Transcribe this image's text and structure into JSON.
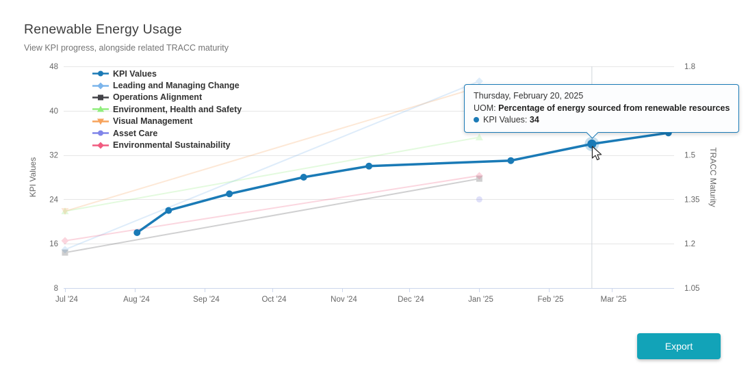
{
  "page": {
    "title": "Renewable Energy Usage",
    "subtitle": "View KPI progress, alongside related TRACC maturity"
  },
  "export_button": {
    "label": "Export",
    "color": "#12a3b8"
  },
  "tooltip": {
    "header": "Thursday, February 20, 2025",
    "uom_label": "UOM:",
    "uom_value": "Percentage of energy sourced from renewable resources",
    "series_label": "KPI Values:",
    "series_value": "34",
    "border_color": "#1a7ab6"
  },
  "chart_data": {
    "type": "line",
    "title": "Renewable Energy Usage",
    "subtitle": "View KPI progress, alongside related TRACC maturity",
    "grid": "horizontal",
    "legend_position": "top-left-inside",
    "x_axis": {
      "ticks": [
        {
          "label": "Jul '24",
          "date": "2024-07-01"
        },
        {
          "label": "Aug '24",
          "date": "2024-08-01"
        },
        {
          "label": "Sep '24",
          "date": "2024-09-01"
        },
        {
          "label": "Oct '24",
          "date": "2024-10-01"
        },
        {
          "label": "Nov '24",
          "date": "2024-11-01"
        },
        {
          "label": "Dec '24",
          "date": "2024-12-01"
        },
        {
          "label": "Jan '25",
          "date": "2025-01-01"
        },
        {
          "label": "Feb '25",
          "date": "2025-02-01"
        },
        {
          "label": "Mar '25",
          "date": "2025-03-01"
        }
      ]
    },
    "y_left": {
      "title": "KPI Values",
      "range": [
        8,
        48
      ],
      "ticks": [
        8,
        16,
        24,
        32,
        40,
        48
      ]
    },
    "y_right": {
      "title": "TRACC Maturity",
      "range": [
        1.05,
        1.8
      ],
      "ticks": [
        1.05,
        1.2,
        1.35,
        1.5,
        1.65,
        1.8
      ]
    },
    "series": [
      {
        "name": "KPI Values",
        "color": "#1a7ab6",
        "axis": "left",
        "marker": "circle",
        "emphasis": true,
        "points": [
          {
            "date": "2024-08-02",
            "value": 18
          },
          {
            "date": "2024-08-16",
            "value": 22
          },
          {
            "date": "2024-09-12",
            "value": 25
          },
          {
            "date": "2024-10-15",
            "value": 28
          },
          {
            "date": "2024-11-13",
            "value": 30
          },
          {
            "date": "2025-01-15",
            "value": 31
          },
          {
            "date": "2025-02-20",
            "value": 34
          },
          {
            "date": "2025-03-26",
            "value": 36
          }
        ]
      },
      {
        "name": "Leading and Managing Change",
        "color": "#7cb5ec",
        "axis": "right",
        "marker": "diamond",
        "dimmed": true,
        "points": [
          {
            "date": "2024-07-01",
            "value": 1.18
          },
          {
            "date": "2025-01-01",
            "value": 1.75
          }
        ]
      },
      {
        "name": "Operations Alignment",
        "color": "#434348",
        "axis": "right",
        "marker": "square",
        "dimmed": true,
        "points": [
          {
            "date": "2024-07-01",
            "value": 1.17
          },
          {
            "date": "2025-01-01",
            "value": 1.42
          }
        ]
      },
      {
        "name": "Environment, Health and Safety",
        "color": "#90ed7d",
        "axis": "right",
        "marker": "triangle-up",
        "dimmed": true,
        "points": [
          {
            "date": "2024-07-01",
            "value": 1.31
          },
          {
            "date": "2025-01-01",
            "value": 1.56
          }
        ]
      },
      {
        "name": "Visual Management",
        "color": "#f7a35c",
        "axis": "right",
        "marker": "triangle-down",
        "dimmed": true,
        "points": [
          {
            "date": "2024-07-01",
            "value": 1.31
          },
          {
            "date": "2025-01-01",
            "value": 1.73
          }
        ]
      },
      {
        "name": "Asset Care",
        "color": "#8085e9",
        "axis": "right",
        "marker": "circle",
        "dimmed": true,
        "points": [
          {
            "date": "2025-01-01",
            "value": 1.35
          }
        ]
      },
      {
        "name": "Environmental Sustainability",
        "color": "#f15c80",
        "axis": "right",
        "marker": "diamond",
        "dimmed": true,
        "points": [
          {
            "date": "2024-07-01",
            "value": 1.21
          },
          {
            "date": "2025-01-01",
            "value": 1.43
          }
        ]
      }
    ],
    "highlight": {
      "series": "KPI Values",
      "date": "2025-02-20",
      "value": 34,
      "crosshair": true
    }
  }
}
